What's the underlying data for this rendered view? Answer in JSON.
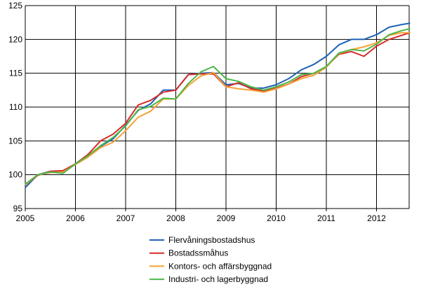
{
  "chart_data": {
    "type": "line",
    "title": "",
    "xlabel": "",
    "ylabel": "",
    "xlim": [
      2005,
      2012.67
    ],
    "ylim": [
      95,
      125
    ],
    "yticks": [
      "95",
      "100",
      "105",
      "110",
      "115",
      "120",
      "125"
    ],
    "xticks": [
      "2005",
      "2006",
      "2007",
      "2008",
      "2009",
      "2010",
      "2011",
      "2012"
    ],
    "grid": true,
    "legend_placement": "bottom",
    "x": [
      2005.0,
      2005.25,
      2005.5,
      2005.75,
      2006.0,
      2006.25,
      2006.5,
      2006.75,
      2007.0,
      2007.25,
      2007.5,
      2007.75,
      2008.0,
      2008.25,
      2008.5,
      2008.75,
      2009.0,
      2009.25,
      2009.5,
      2009.75,
      2010.0,
      2010.25,
      2010.5,
      2010.75,
      2011.0,
      2011.25,
      2011.5,
      2011.75,
      2012.0,
      2012.25,
      2012.5,
      2012.67
    ],
    "series": [
      {
        "name": "Flervåningsbostadshus",
        "color": "#1f63b5",
        "values": [
          98.1,
          100.0,
          100.5,
          100.4,
          101.6,
          102.7,
          104.2,
          105.3,
          107.3,
          109.5,
          110.5,
          112.5,
          112.5,
          114.8,
          115.0,
          115.1,
          113.3,
          113.5,
          112.8,
          112.8,
          113.3,
          114.2,
          115.5,
          116.3,
          117.5,
          119.2,
          120.0,
          120.0,
          120.7,
          121.8,
          122.2,
          122.4
        ]
      },
      {
        "name": "Bostadssmåhus",
        "color": "#d62b2b",
        "values": [
          98.5,
          99.9,
          100.5,
          100.6,
          101.6,
          103.0,
          105.0,
          106.0,
          107.6,
          110.3,
          111.0,
          112.2,
          112.5,
          114.8,
          114.9,
          114.9,
          113.0,
          113.6,
          112.7,
          112.4,
          112.8,
          113.4,
          114.5,
          115.0,
          116.0,
          117.8,
          118.2,
          117.5,
          119.0,
          120.0,
          120.6,
          121.0
        ]
      },
      {
        "name": "Kontors- och affärsbyggnad",
        "color": "#f7a035",
        "values": [
          98.5,
          100.0,
          100.3,
          100.4,
          101.5,
          102.6,
          104.0,
          104.8,
          106.5,
          108.5,
          109.4,
          111.2,
          111.2,
          113.2,
          114.6,
          115.1,
          113.0,
          112.7,
          112.5,
          112.2,
          112.7,
          113.4,
          114.2,
          114.7,
          115.9,
          117.9,
          118.5,
          118.9,
          119.5,
          120.6,
          121.0,
          121.0
        ]
      },
      {
        "name": "Industri- och lagerbyggnad",
        "color": "#4cb848",
        "values": [
          98.6,
          100.0,
          100.4,
          100.2,
          101.6,
          102.8,
          104.3,
          105.5,
          107.2,
          109.6,
          110.1,
          111.3,
          111.2,
          113.5,
          115.2,
          116.0,
          114.2,
          113.8,
          113.0,
          112.5,
          113.0,
          113.7,
          114.8,
          115.0,
          116.0,
          118.0,
          118.5,
          118.3,
          119.3,
          120.7,
          121.3,
          121.6
        ]
      }
    ]
  }
}
